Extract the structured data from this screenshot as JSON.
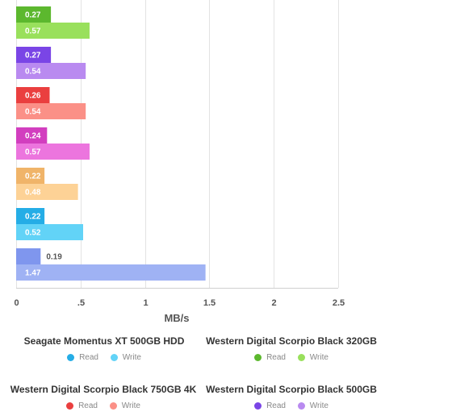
{
  "chart_data": {
    "type": "bar",
    "orientation": "horizontal",
    "xlabel": "MB/s",
    "xlim": [
      0,
      2.5
    ],
    "x_ticks": [
      "0",
      ".5",
      "1",
      "1.5",
      "2",
      "2.5"
    ],
    "grid": true,
    "groups": [
      {
        "bars": [
          {
            "label": "Read",
            "value": 0.27,
            "color": "#5cb82e"
          },
          {
            "label": "Write",
            "value": 0.57,
            "color": "#99e05c"
          }
        ]
      },
      {
        "bars": [
          {
            "label": "Read",
            "value": 0.27,
            "color": "#7a45e6"
          },
          {
            "label": "Write",
            "value": 0.54,
            "color": "#b98af0"
          }
        ]
      },
      {
        "bars": [
          {
            "label": "Read",
            "value": 0.26,
            "color": "#ea3f3f"
          },
          {
            "label": "Write",
            "value": 0.54,
            "color": "#fb9087"
          }
        ]
      },
      {
        "bars": [
          {
            "label": "Read",
            "value": 0.24,
            "color": "#d23ebf"
          },
          {
            "label": "Write",
            "value": 0.57,
            "color": "#ec75de"
          }
        ]
      },
      {
        "bars": [
          {
            "label": "Read",
            "value": 0.22,
            "color": "#f0b469"
          },
          {
            "label": "Write",
            "value": 0.48,
            "color": "#fdd296"
          }
        ]
      },
      {
        "bars": [
          {
            "label": "Read",
            "value": 0.22,
            "color": "#25ade6"
          },
          {
            "label": "Write",
            "value": 0.52,
            "color": "#62d3f7"
          }
        ]
      },
      {
        "bars": [
          {
            "label": "Read",
            "value": 0.19,
            "color": "#7f96ee"
          },
          {
            "label": "Write",
            "value": 1.47,
            "color": "#9fb2f4"
          }
        ]
      }
    ]
  },
  "legend": [
    {
      "title": "Seagate Momentus XT 500GB HDD",
      "read_label": "Read",
      "write_label": "Write",
      "read_color": "#25ade6",
      "write_color": "#62d3f7"
    },
    {
      "title": "Western Digital Scorpio Black 320GB",
      "read_label": "Read",
      "write_label": "Write",
      "read_color": "#5cb82e",
      "write_color": "#99e05c"
    },
    {
      "title": "Western Digital Scorpio Black 750GB 4K",
      "read_label": "Read",
      "write_label": "Write",
      "read_color": "#ea3f3f",
      "write_color": "#fb9087"
    },
    {
      "title": "Western Digital Scorpio Black 500GB",
      "read_label": "Read",
      "write_label": "Write",
      "read_color": "#7a45e6",
      "write_color": "#b98af0"
    }
  ]
}
